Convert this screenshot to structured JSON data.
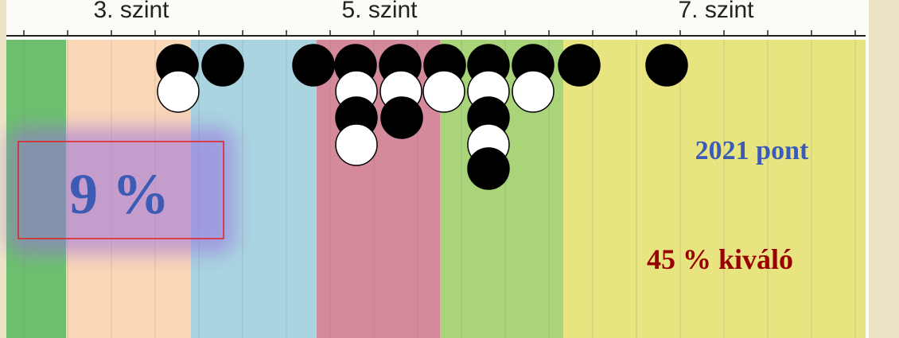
{
  "axis": {
    "labels": [
      "3. szint",
      "5. szint",
      "7. szint"
    ]
  },
  "highlight": {
    "text": "9 %"
  },
  "notes": {
    "points": "2021 pont",
    "excellent": "45 % kiváló"
  }
}
